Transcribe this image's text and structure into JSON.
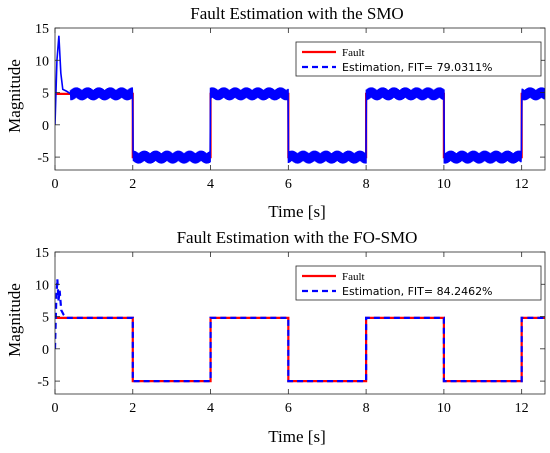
{
  "chart_data": [
    {
      "type": "line",
      "title": "Fault Estimation with the SMO",
      "xlabel": "Time [s]",
      "ylabel": "Magnitude",
      "xlim": [
        0,
        12.6
      ],
      "ylim": [
        -7,
        15
      ],
      "xticks": [
        0,
        2,
        4,
        6,
        8,
        10,
        12
      ],
      "yticks": [
        -5,
        0,
        5,
        10,
        15
      ],
      "xtick_labels": [
        "0",
        "2",
        "4",
        "6",
        "8",
        "10",
        "12"
      ],
      "ytick_labels": [
        "-5",
        "0",
        "5",
        "10",
        "15"
      ],
      "grid": false,
      "legend_position": "top-right",
      "series": [
        {
          "name": "Fault",
          "style": "solid",
          "color": "#ff0000",
          "x": [
            0,
            2,
            2,
            4,
            4,
            6,
            6,
            8,
            8,
            10,
            10,
            12,
            12,
            12.6
          ],
          "y": [
            4.8,
            4.8,
            -5.0,
            -5.0,
            4.8,
            4.8,
            -5.0,
            -5.0,
            4.8,
            4.8,
            -5.0,
            -5.0,
            4.8,
            4.8
          ]
        },
        {
          "name": "Estimation,  FIT= 79.0311%",
          "style": "dashed",
          "color": "#0000ff",
          "x": [
            0,
            0.05,
            0.1,
            0.15,
            0.2,
            0.3,
            0.4,
            2,
            2,
            4,
            4,
            6,
            6,
            8,
            8,
            10,
            10,
            12,
            12,
            12.6
          ],
          "y": [
            0,
            10,
            13.8,
            8,
            5.5,
            5.2,
            4.8,
            4.8,
            -5.0,
            -5.0,
            4.8,
            4.8,
            -5.0,
            -5.0,
            4.8,
            4.8,
            -5.0,
            -5.0,
            4.8,
            4.8
          ],
          "oscillation_amplitude": 1.0
        }
      ]
    },
    {
      "type": "line",
      "title": "Fault Estimation with the FO-SMO",
      "xlabel": "Time [s]",
      "ylabel": "Magnitude",
      "xlim": [
        0,
        12.6
      ],
      "ylim": [
        -7,
        15
      ],
      "xticks": [
        0,
        2,
        4,
        6,
        8,
        10,
        12
      ],
      "yticks": [
        -5,
        0,
        5,
        10,
        15
      ],
      "xtick_labels": [
        "0",
        "2",
        "4",
        "6",
        "8",
        "10",
        "12"
      ],
      "ytick_labels": [
        "-5",
        "0",
        "5",
        "10",
        "15"
      ],
      "grid": false,
      "legend_position": "top-right",
      "series": [
        {
          "name": "Fault",
          "style": "solid",
          "color": "#ff0000",
          "x": [
            0,
            2,
            2,
            4,
            4,
            6,
            6,
            8,
            8,
            10,
            10,
            12,
            12,
            12.6
          ],
          "y": [
            4.8,
            4.8,
            -5.0,
            -5.0,
            4.8,
            4.8,
            -5.0,
            -5.0,
            4.8,
            4.8,
            -5.0,
            -5.0,
            4.8,
            4.8
          ]
        },
        {
          "name": "Estimation,  FIT= 84.2462%",
          "style": "dashed",
          "color": "#0000ff",
          "x": [
            0,
            0.03,
            0.06,
            0.09,
            0.12,
            0.16,
            0.22,
            0.3,
            2,
            2,
            4,
            4,
            6,
            6,
            8,
            8,
            10,
            10,
            12,
            12,
            12.6
          ],
          "y": [
            0,
            7,
            10.8,
            7.5,
            9,
            6,
            5.3,
            4.8,
            4.8,
            -5.0,
            -5.0,
            4.8,
            4.8,
            -5.0,
            -5.0,
            4.8,
            4.8,
            -5.0,
            -5.0,
            4.8,
            4.8
          ],
          "oscillation_amplitude": 0
        }
      ]
    }
  ]
}
